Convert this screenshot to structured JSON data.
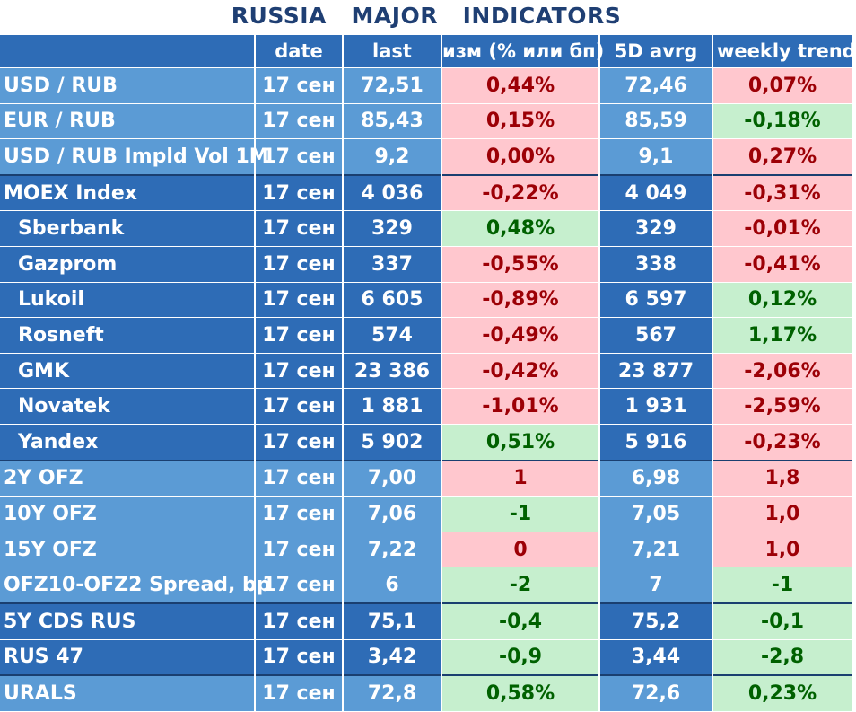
{
  "title": "RUSSIA   MAJOR   INDICATORS",
  "headers": {
    "name": "",
    "date": "date",
    "last": "last",
    "change": "изм (% или бп)",
    "avg5d": "5D avrg",
    "trend": "weekly trend"
  },
  "rows": [
    {
      "name": "USD / RUB",
      "date": "17 сен",
      "last": "72,51",
      "change": "0,44%",
      "avg": "72,46",
      "trend": "0,07%",
      "change_dir": "up",
      "trend_dir": "up"
    },
    {
      "name": "EUR / RUB",
      "date": "17 сен",
      "last": "85,43",
      "change": "0,15%",
      "avg": "85,59",
      "trend": "-0,18%",
      "change_dir": "up",
      "trend_dir": "dn"
    },
    {
      "name": "USD / RUB Impld Vol 1M",
      "date": "17 сен",
      "last": "9,2",
      "change": "0,00%",
      "avg": "9,1",
      "trend": "0,27%",
      "change_dir": "up",
      "trend_dir": "up"
    },
    {
      "name": "MOEX Index",
      "date": "17 сен",
      "last": "4 036",
      "change": "-0,22%",
      "avg": "4 049",
      "trend": "-0,31%",
      "change_dir": "up",
      "trend_dir": "up"
    },
    {
      "name": "Sberbank",
      "date": "17 сен",
      "last": "329",
      "change": "0,48%",
      "avg": "329",
      "trend": "-0,01%",
      "change_dir": "dn",
      "trend_dir": "up"
    },
    {
      "name": "Gazprom",
      "date": "17 сен",
      "last": "337",
      "change": "-0,55%",
      "avg": "338",
      "trend": "-0,41%",
      "change_dir": "up",
      "trend_dir": "up"
    },
    {
      "name": "Lukoil",
      "date": "17 сен",
      "last": "6 605",
      "change": "-0,89%",
      "avg": "6 597",
      "trend": "0,12%",
      "change_dir": "up",
      "trend_dir": "dn"
    },
    {
      "name": "Rosneft",
      "date": "17 сен",
      "last": "574",
      "change": "-0,49%",
      "avg": "567",
      "trend": "1,17%",
      "change_dir": "up",
      "trend_dir": "dn"
    },
    {
      "name": "GMK",
      "date": "17 сен",
      "last": "23 386",
      "change": "-0,42%",
      "avg": "23 877",
      "trend": "-2,06%",
      "change_dir": "up",
      "trend_dir": "up"
    },
    {
      "name": "Novatek",
      "date": "17 сен",
      "last": "1 881",
      "change": "-1,01%",
      "avg": "1 931",
      "trend": "-2,59%",
      "change_dir": "up",
      "trend_dir": "up"
    },
    {
      "name": "Yandex",
      "date": "17 сен",
      "last": "5 902",
      "change": "0,51%",
      "avg": "5 916",
      "trend": "-0,23%",
      "change_dir": "dn",
      "trend_dir": "up"
    },
    {
      "name": "2Y OFZ",
      "date": "17 сен",
      "last": "7,00",
      "change": "1",
      "avg": "6,98",
      "trend": "1,8",
      "change_dir": "up",
      "trend_dir": "up"
    },
    {
      "name": "10Y OFZ",
      "date": "17 сен",
      "last": "7,06",
      "change": "-1",
      "avg": "7,05",
      "trend": "1,0",
      "change_dir": "dn",
      "trend_dir": "up"
    },
    {
      "name": "15Y OFZ",
      "date": "17 сен",
      "last": "7,22",
      "change": "0",
      "avg": "7,21",
      "trend": "1,0",
      "change_dir": "up",
      "trend_dir": "up"
    },
    {
      "name": "OFZ10-OFZ2 Spread, bp",
      "date": "17 сен",
      "last": "6",
      "change": "-2",
      "avg": "7",
      "trend": "-1",
      "change_dir": "dn",
      "trend_dir": "dn"
    },
    {
      "name": "5Y CDS RUS",
      "date": "17 сен",
      "last": "75,1",
      "change": "-0,4",
      "avg": "75,2",
      "trend": "-0,1",
      "change_dir": "dn",
      "trend_dir": "dn"
    },
    {
      "name": "RUS 47",
      "date": "17 сен",
      "last": "3,42",
      "change": "-0,9",
      "avg": "3,44",
      "trend": "-2,8",
      "change_dir": "dn",
      "trend_dir": "dn"
    },
    {
      "name": "URALS",
      "date": "17 сен",
      "last": "72,8",
      "change": "0,58%",
      "avg": "72,6",
      "trend": "0,23%",
      "change_dir": "dn",
      "trend_dir": "dn"
    }
  ]
}
